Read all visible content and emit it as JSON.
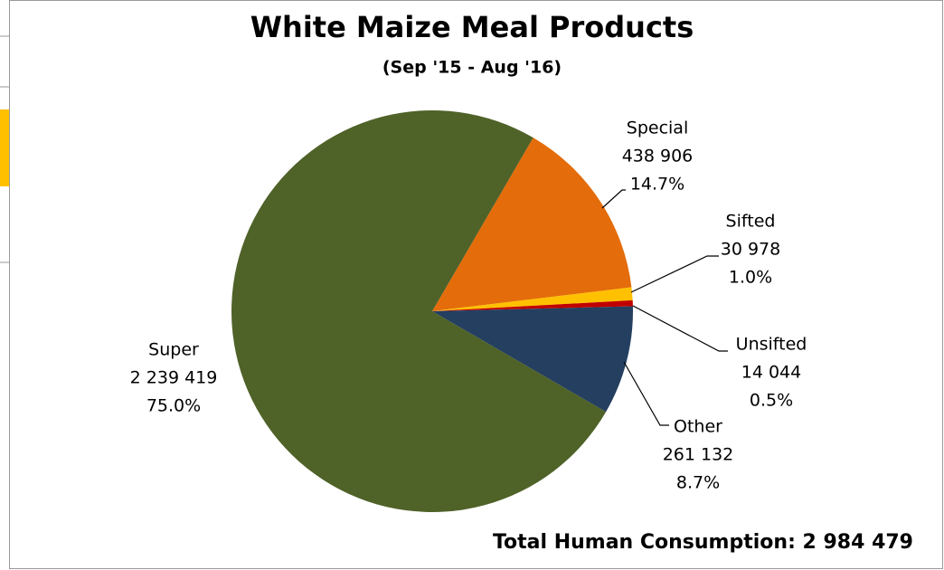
{
  "chart_data": {
    "type": "pie",
    "title": "White Maize Meal Products",
    "subtitle": "(Sep '15 - Aug '16)",
    "categories": [
      "Special",
      "Sifted",
      "Unsifted",
      "Other",
      "Super"
    ],
    "values": [
      438906,
      30978,
      14044,
      261132,
      2239419
    ],
    "value_labels": [
      "438 906",
      "30 978",
      "14 044",
      "261 132",
      "2 239 419"
    ],
    "percent_labels": [
      "14.7%",
      "1.0%",
      "0.5%",
      "8.7%",
      "75.0%"
    ],
    "colors": [
      "#e46c0a",
      "#ffc000",
      "#c00000",
      "#243f60",
      "#4f6228"
    ],
    "annotation": "Total Human Consumption: 2 984 479"
  }
}
